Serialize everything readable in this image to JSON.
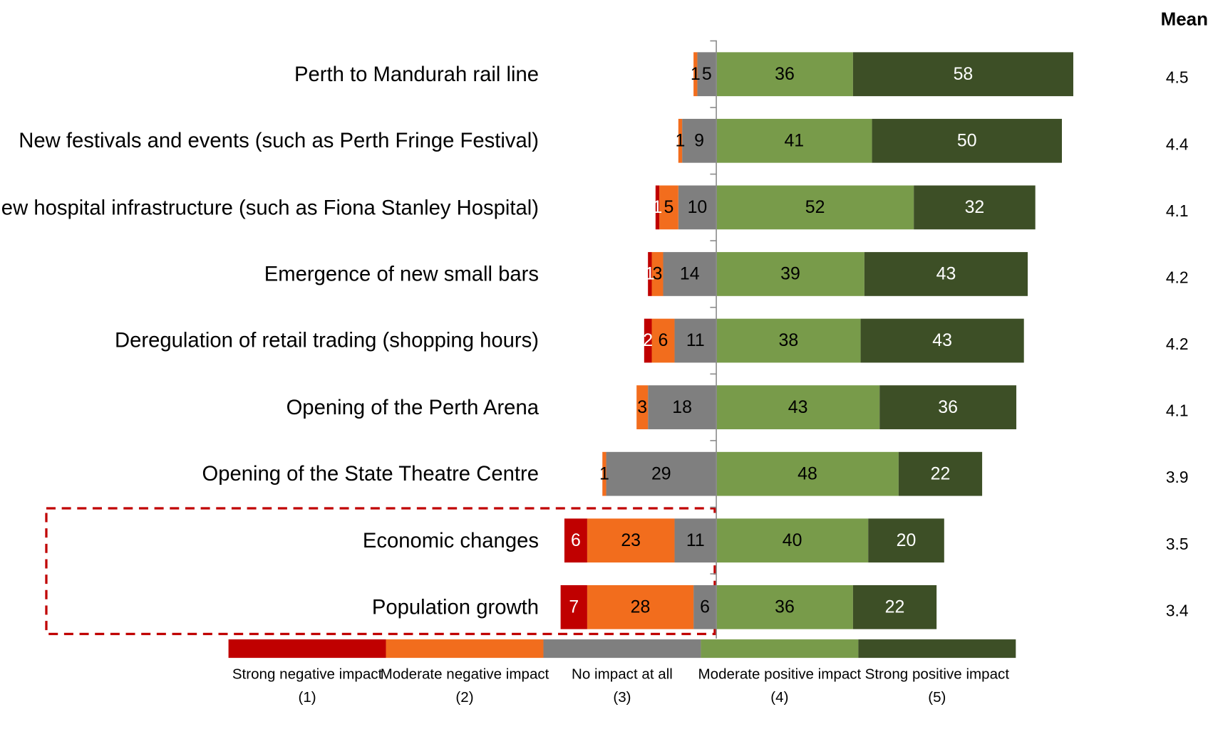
{
  "chart_data": {
    "type": "diverging_stacked_bar",
    "categories": [
      "Perth to Mandurah rail line",
      "New festivals and events (such as Perth Fringe Festival)",
      "New hospital infrastructure (such as Fiona Stanley Hospital)",
      "Emergence of new small bars",
      "Deregulation of retail trading (shopping hours)",
      "Opening of the Perth Arena",
      "Opening of the State Theatre Centre",
      "Economic changes",
      "Population growth"
    ],
    "series": [
      {
        "name": "Strong negative impact\n(1)",
        "color": "#c00000",
        "label_color": "#ffffff",
        "side": "negative",
        "values": [
          null,
          null,
          1,
          1,
          2,
          null,
          null,
          6,
          7
        ]
      },
      {
        "name": "Moderate negative impact\n(2)",
        "color": "#f26d1d",
        "label_color": "#000000",
        "side": "negative",
        "values": [
          1,
          1,
          5,
          3,
          6,
          3,
          1,
          23,
          28
        ]
      },
      {
        "name": "No impact at all\n(3)",
        "color": "#7f7f7f",
        "label_color": "#000000",
        "side": "negative",
        "values": [
          5,
          9,
          10,
          14,
          11,
          18,
          29,
          11,
          6
        ]
      },
      {
        "name": "Moderate positive impact\n(4)",
        "color": "#789b4a",
        "label_color": "#000000",
        "side": "positive",
        "values": [
          36,
          41,
          52,
          39,
          38,
          43,
          48,
          40,
          36
        ]
      },
      {
        "name": "Strong positive impact\n(5)",
        "color": "#3d4f26",
        "label_color": "#ffffff",
        "side": "positive",
        "values": [
          58,
          50,
          32,
          43,
          43,
          36,
          22,
          20,
          22
        ]
      }
    ],
    "mean_title": "Mean",
    "means": [
      4.5,
      4.4,
      4.1,
      4.2,
      4.2,
      4.1,
      3.9,
      3.5,
      3.4
    ]
  }
}
